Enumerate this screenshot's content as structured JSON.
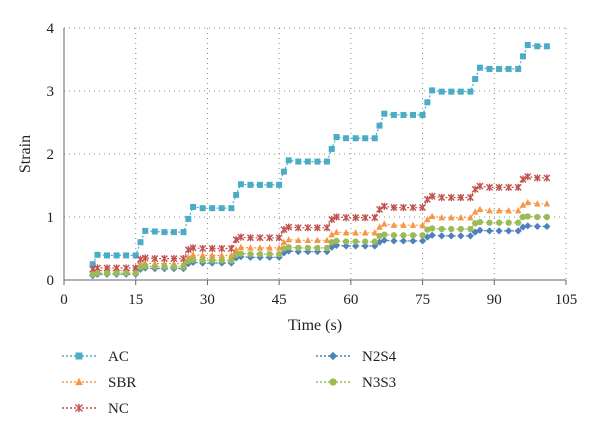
{
  "chart_data": {
    "type": "line",
    "title": "",
    "xlabel": "Time (s)",
    "ylabel": "Strain",
    "xlim": [
      0,
      105
    ],
    "ylim": [
      0,
      4
    ],
    "xticks": [
      "0",
      "15",
      "30",
      "45",
      "60",
      "75",
      "90",
      "105"
    ],
    "yticks": [
      "0",
      "1",
      "2",
      "3",
      "4"
    ],
    "grid": "dotted",
    "legend_position": "bottom",
    "series": [
      {
        "name": "AC",
        "color": "#4bacc6",
        "marker": "square",
        "x": [
          6,
          7,
          9,
          11,
          13,
          15,
          16,
          17,
          19,
          21,
          23,
          25,
          26,
          27,
          29,
          31,
          33,
          35,
          36,
          37,
          39,
          41,
          43,
          45,
          46,
          47,
          49,
          51,
          53,
          55,
          56,
          57,
          59,
          61,
          63,
          65,
          66,
          67,
          69,
          71,
          73,
          75,
          76,
          77,
          79,
          81,
          83,
          85,
          86,
          87,
          89,
          91,
          93,
          95,
          96,
          97,
          99,
          101
        ],
        "y": [
          0.25,
          0.4,
          0.39,
          0.39,
          0.39,
          0.39,
          0.6,
          0.78,
          0.77,
          0.76,
          0.76,
          0.76,
          0.97,
          1.16,
          1.14,
          1.14,
          1.14,
          1.14,
          1.35,
          1.52,
          1.51,
          1.51,
          1.51,
          1.51,
          1.72,
          1.9,
          1.88,
          1.88,
          1.88,
          1.88,
          2.08,
          2.27,
          2.25,
          2.25,
          2.25,
          2.25,
          2.45,
          2.64,
          2.62,
          2.62,
          2.62,
          2.62,
          2.82,
          3.01,
          2.99,
          2.99,
          2.99,
          2.99,
          3.19,
          3.37,
          3.35,
          3.35,
          3.35,
          3.35,
          3.55,
          3.73,
          3.71,
          3.71
        ]
      },
      {
        "name": "SBR",
        "color": "#f79646",
        "marker": "triangle",
        "x": [
          6,
          7,
          9,
          11,
          13,
          15,
          16,
          17,
          19,
          21,
          23,
          25,
          26,
          27,
          29,
          31,
          33,
          35,
          36,
          37,
          39,
          41,
          43,
          45,
          46,
          47,
          49,
          51,
          53,
          55,
          56,
          57,
          59,
          61,
          63,
          65,
          66,
          67,
          69,
          71,
          73,
          75,
          76,
          77,
          79,
          81,
          83,
          85,
          86,
          87,
          89,
          91,
          93,
          95,
          96,
          97,
          99,
          101
        ],
        "y": [
          0.12,
          0.15,
          0.15,
          0.15,
          0.15,
          0.15,
          0.25,
          0.27,
          0.26,
          0.26,
          0.26,
          0.26,
          0.36,
          0.4,
          0.39,
          0.39,
          0.39,
          0.39,
          0.48,
          0.52,
          0.51,
          0.51,
          0.51,
          0.51,
          0.6,
          0.64,
          0.63,
          0.63,
          0.63,
          0.63,
          0.72,
          0.76,
          0.75,
          0.75,
          0.75,
          0.75,
          0.84,
          0.89,
          0.87,
          0.87,
          0.87,
          0.87,
          0.96,
          1.01,
          0.99,
          0.99,
          0.99,
          0.99,
          1.08,
          1.12,
          1.1,
          1.1,
          1.1,
          1.1,
          1.19,
          1.23,
          1.21,
          1.21
        ]
      },
      {
        "name": "NC",
        "color": "#c0504d",
        "marker": "star",
        "x": [
          6,
          7,
          9,
          11,
          13,
          15,
          16,
          17,
          19,
          21,
          23,
          25,
          26,
          27,
          29,
          31,
          33,
          35,
          36,
          37,
          39,
          41,
          43,
          45,
          46,
          47,
          49,
          51,
          53,
          55,
          56,
          57,
          59,
          61,
          63,
          65,
          66,
          67,
          69,
          71,
          73,
          75,
          76,
          77,
          79,
          81,
          83,
          85,
          86,
          87,
          89,
          91,
          93,
          95,
          96,
          97,
          99,
          101
        ],
        "y": [
          0.17,
          0.19,
          0.19,
          0.19,
          0.19,
          0.19,
          0.33,
          0.35,
          0.34,
          0.34,
          0.34,
          0.34,
          0.48,
          0.51,
          0.5,
          0.5,
          0.5,
          0.5,
          0.64,
          0.68,
          0.67,
          0.67,
          0.67,
          0.67,
          0.8,
          0.84,
          0.83,
          0.83,
          0.83,
          0.83,
          0.96,
          1.0,
          0.99,
          0.99,
          0.99,
          0.99,
          1.12,
          1.17,
          1.15,
          1.15,
          1.15,
          1.15,
          1.28,
          1.33,
          1.31,
          1.31,
          1.31,
          1.31,
          1.44,
          1.49,
          1.47,
          1.47,
          1.47,
          1.47,
          1.6,
          1.64,
          1.62,
          1.62
        ]
      },
      {
        "name": "N2S4",
        "color": "#4f81bd",
        "marker": "diamond",
        "x": [
          6,
          7,
          9,
          11,
          13,
          15,
          16,
          17,
          19,
          21,
          23,
          25,
          26,
          27,
          29,
          31,
          33,
          35,
          36,
          37,
          39,
          41,
          43,
          45,
          46,
          47,
          49,
          51,
          53,
          55,
          56,
          57,
          59,
          61,
          63,
          65,
          66,
          67,
          69,
          71,
          73,
          75,
          76,
          77,
          79,
          81,
          83,
          85,
          86,
          87,
          89,
          91,
          93,
          95,
          96,
          97,
          99,
          101
        ],
        "y": [
          0.07,
          0.09,
          0.09,
          0.09,
          0.09,
          0.09,
          0.17,
          0.19,
          0.18,
          0.18,
          0.18,
          0.18,
          0.26,
          0.28,
          0.27,
          0.27,
          0.27,
          0.27,
          0.35,
          0.37,
          0.36,
          0.36,
          0.36,
          0.36,
          0.43,
          0.46,
          0.45,
          0.45,
          0.45,
          0.45,
          0.52,
          0.55,
          0.54,
          0.54,
          0.54,
          0.54,
          0.6,
          0.63,
          0.62,
          0.62,
          0.62,
          0.62,
          0.68,
          0.71,
          0.7,
          0.7,
          0.7,
          0.7,
          0.76,
          0.79,
          0.78,
          0.78,
          0.78,
          0.78,
          0.84,
          0.86,
          0.85,
          0.85
        ]
      },
      {
        "name": "N3S3",
        "color": "#9bbb59",
        "marker": "circle",
        "x": [
          6,
          7,
          9,
          11,
          13,
          15,
          16,
          17,
          19,
          21,
          23,
          25,
          26,
          27,
          29,
          31,
          33,
          35,
          36,
          37,
          39,
          41,
          43,
          45,
          46,
          47,
          49,
          51,
          53,
          55,
          56,
          57,
          59,
          61,
          63,
          65,
          66,
          67,
          69,
          71,
          73,
          75,
          76,
          77,
          79,
          81,
          83,
          85,
          86,
          87,
          89,
          91,
          93,
          95,
          96,
          97,
          99,
          101
        ],
        "y": [
          0.09,
          0.11,
          0.11,
          0.11,
          0.11,
          0.11,
          0.2,
          0.22,
          0.21,
          0.21,
          0.21,
          0.21,
          0.3,
          0.32,
          0.31,
          0.31,
          0.31,
          0.31,
          0.4,
          0.42,
          0.41,
          0.41,
          0.41,
          0.41,
          0.5,
          0.52,
          0.51,
          0.51,
          0.51,
          0.51,
          0.6,
          0.62,
          0.61,
          0.61,
          0.61,
          0.61,
          0.7,
          0.72,
          0.71,
          0.71,
          0.71,
          0.71,
          0.8,
          0.82,
          0.81,
          0.81,
          0.81,
          0.81,
          0.9,
          0.92,
          0.91,
          0.91,
          0.91,
          0.91,
          1.0,
          1.01,
          1.0,
          1.0
        ]
      }
    ]
  }
}
